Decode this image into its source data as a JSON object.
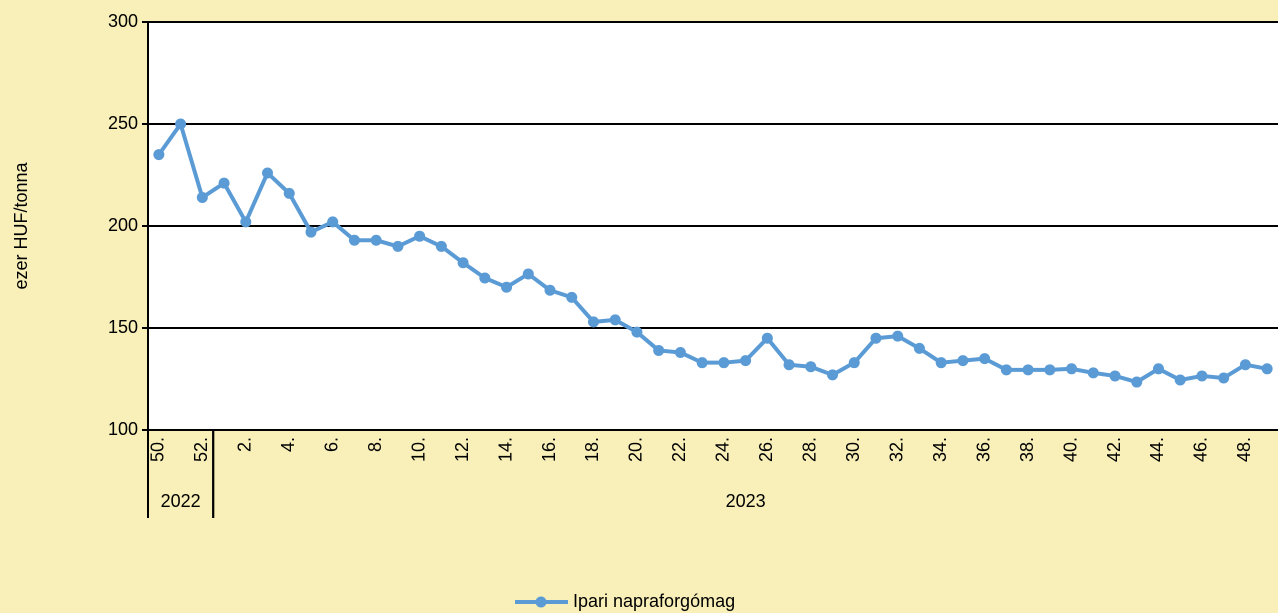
{
  "chart_data": {
    "type": "line",
    "y_label": "ezer HUF/tonna",
    "categories": [
      "50.",
      null,
      "52.",
      null,
      "2.",
      null,
      "4.",
      null,
      "6.",
      null,
      "8.",
      null,
      "10.",
      null,
      "12.",
      null,
      "14.",
      null,
      "16.",
      null,
      "18.",
      null,
      "20.",
      null,
      "22.",
      null,
      "24.",
      null,
      "26.",
      null,
      "28.",
      null,
      "30.",
      null,
      "32.",
      null,
      "34.",
      null,
      "36.",
      null,
      "38.",
      null,
      "40.",
      null,
      "42.",
      null,
      "44.",
      null,
      "46.",
      null,
      "48.",
      null
    ],
    "years": [
      "2022",
      "2022",
      "2022",
      "2023",
      "2023",
      "2023",
      "2023",
      "2023",
      "2023",
      "2023",
      "2023",
      "2023",
      "2023",
      "2023",
      "2023",
      "2023",
      "2023",
      "2023",
      "2023",
      "2023",
      "2023",
      "2023",
      "2023",
      "2023",
      "2023",
      "2023",
      "2023",
      "2023",
      "2023",
      "2023",
      "2023",
      "2023",
      "2023",
      "2023",
      "2023",
      "2023",
      "2023",
      "2023",
      "2023",
      "2023",
      "2023",
      "2023",
      "2023",
      "2023",
      "2023",
      "2023",
      "2023",
      "2023",
      "2023",
      "2023",
      "2023",
      "2023"
    ],
    "series": [
      {
        "name": "Ipari napraforgómag",
        "color": "#5b9bd5",
        "values": [
          235,
          250,
          214,
          221,
          202,
          226,
          216,
          197,
          202,
          193,
          193,
          190,
          195,
          190,
          182,
          174.5,
          170,
          176.5,
          168.5,
          165,
          153,
          154,
          148,
          139,
          138,
          133,
          133,
          134,
          145,
          132,
          131,
          127,
          133,
          145,
          146,
          140,
          133,
          134,
          135,
          129.5,
          129.5,
          129.5,
          130,
          128,
          126.5,
          123.5,
          130,
          124.5,
          126.5,
          125.5,
          132,
          130
        ]
      }
    ],
    "ylim": [
      100,
      300
    ],
    "yticks": [
      100,
      150,
      200,
      250,
      300
    ],
    "grid": true,
    "legend": "bottom"
  }
}
